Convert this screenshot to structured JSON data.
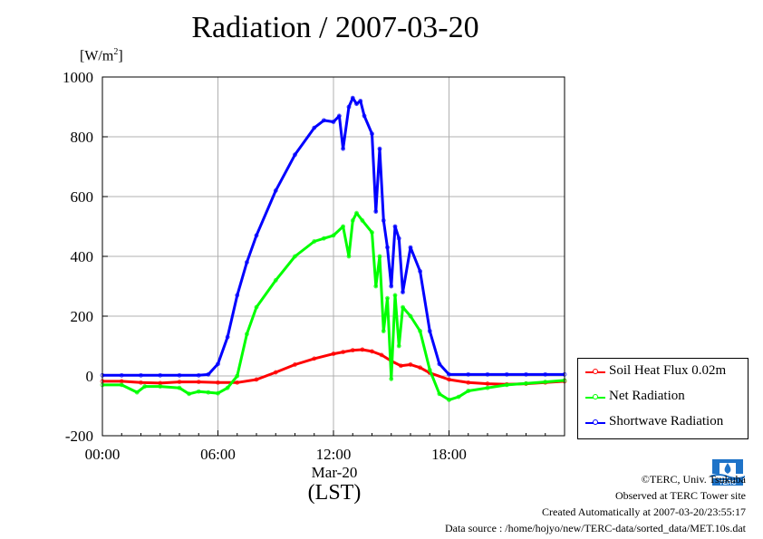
{
  "title": "Radiation / 2007-03-20",
  "unit_label": "[W/m",
  "unit_sup": "2",
  "unit_close": "]",
  "x_sublabel": "Mar-20",
  "x_label": "(LST)",
  "credits": {
    "copyright": "©TERC, Univ. Tsukuba",
    "observed": "Observed at TERC Tower site",
    "created": "Created Automatically at 2007-03-20/23:55:17",
    "source": "Data source : /home/hojyo/new/TERC-data/sorted_data/MET.10s.dat"
  },
  "logo_text": "TERC",
  "colors": {
    "soil": "#ff0000",
    "net": "#00ff00",
    "shortwave": "#0000ff",
    "grid": "#b0b0b0"
  },
  "chart_data": {
    "type": "line",
    "title": "Radiation / 2007-03-20",
    "ylabel": "[W/m2]",
    "xlabel": "(LST)",
    "xlim": [
      0,
      24
    ],
    "ylim": [
      -200,
      1000
    ],
    "x_unit": "hour",
    "x_ticks": [
      {
        "value": 0,
        "label": "00:00"
      },
      {
        "value": 6,
        "label": "06:00"
      },
      {
        "value": 12,
        "label": "12:00"
      },
      {
        "value": 18,
        "label": "18:00"
      }
    ],
    "y_ticks": [
      {
        "value": -200,
        "label": "-200"
      },
      {
        "value": 0,
        "label": "0"
      },
      {
        "value": 200,
        "label": "200"
      },
      {
        "value": 400,
        "label": "400"
      },
      {
        "value": 600,
        "label": "600"
      },
      {
        "value": 800,
        "label": "800"
      },
      {
        "value": 1000,
        "label": "1000"
      }
    ],
    "grid": true,
    "legend_position": "right-bottom",
    "series": [
      {
        "name": "Soil Heat Flux 0.02m",
        "color": "#ff0000",
        "x": [
          0,
          1,
          2,
          3,
          4,
          5,
          6,
          7,
          8,
          9,
          10,
          11,
          12,
          12.5,
          13,
          13.5,
          14,
          14.5,
          15,
          15.5,
          16,
          16.5,
          17,
          18,
          19,
          20,
          21,
          22,
          23,
          24
        ],
        "y": [
          -18,
          -18,
          -22,
          -24,
          -20,
          -20,
          -22,
          -22,
          -12,
          12,
          38,
          58,
          74,
          80,
          86,
          88,
          82,
          70,
          50,
          34,
          38,
          28,
          10,
          -12,
          -22,
          -26,
          -28,
          -26,
          -22,
          -18
        ]
      },
      {
        "name": "Net Radiation",
        "color": "#00ff00",
        "x": [
          0,
          1,
          1.8,
          2.2,
          3,
          4,
          4.5,
          5,
          5.5,
          6,
          6.5,
          7,
          7.5,
          8,
          9,
          10,
          11,
          11.5,
          12,
          12.5,
          12.8,
          13,
          13.2,
          13.5,
          14,
          14.2,
          14.4,
          14.6,
          14.8,
          15,
          15.2,
          15.4,
          15.6,
          16,
          16.5,
          17,
          17.5,
          18,
          18.5,
          19,
          20,
          21,
          22,
          23,
          24
        ],
        "y": [
          -30,
          -30,
          -55,
          -35,
          -35,
          -40,
          -60,
          -52,
          -55,
          -58,
          -40,
          0,
          140,
          230,
          320,
          400,
          450,
          460,
          470,
          500,
          400,
          520,
          545,
          520,
          480,
          300,
          400,
          150,
          260,
          -10,
          270,
          100,
          230,
          200,
          150,
          20,
          -60,
          -80,
          -70,
          -50,
          -40,
          -30,
          -25,
          -20,
          -15
        ]
      },
      {
        "name": "Shortwave Radiation",
        "color": "#0000ff",
        "x": [
          0,
          1,
          2,
          3,
          4,
          5,
          5.5,
          6,
          6.5,
          7,
          7.5,
          8,
          9,
          10,
          11,
          11.5,
          12,
          12.3,
          12.5,
          12.8,
          13,
          13.2,
          13.4,
          13.6,
          14,
          14.2,
          14.4,
          14.6,
          14.8,
          15,
          15.2,
          15.4,
          15.6,
          16,
          16.5,
          17,
          17.5,
          18,
          19,
          20,
          21,
          22,
          23,
          24
        ],
        "y": [
          2,
          2,
          2,
          2,
          2,
          2,
          5,
          40,
          130,
          270,
          380,
          470,
          620,
          740,
          830,
          855,
          850,
          870,
          760,
          900,
          930,
          910,
          920,
          870,
          810,
          550,
          760,
          520,
          430,
          300,
          500,
          460,
          280,
          430,
          350,
          150,
          40,
          5,
          5,
          5,
          5,
          5,
          5,
          5
        ]
      }
    ]
  }
}
